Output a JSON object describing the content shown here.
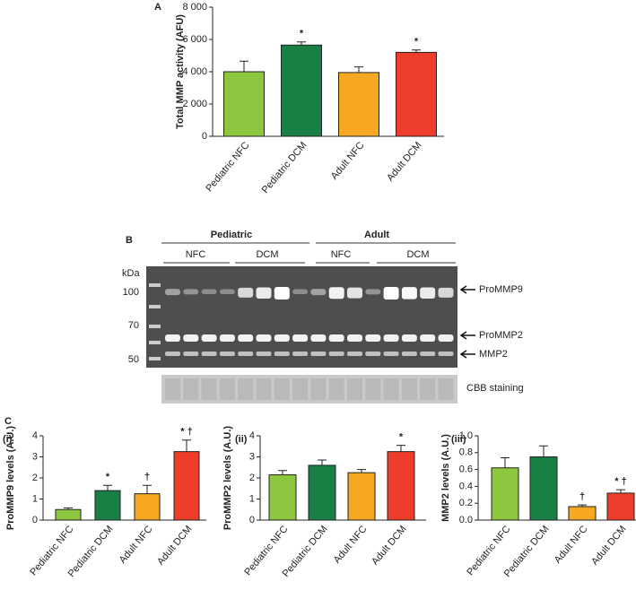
{
  "chart_data": [
    {
      "type": "bar",
      "panel": "A",
      "ylabel": "Total MMP activity (AFU)",
      "categories": [
        "Pediatric NFC",
        "Pediatric DCM",
        "Adult NFC",
        "Adult DCM"
      ],
      "values": [
        4000,
        5650,
        3950,
        5200
      ],
      "errors": [
        650,
        200,
        350,
        150
      ],
      "annotations": [
        null,
        "*",
        null,
        "*"
      ],
      "colors": [
        "#8dc63f",
        "#1a7f45",
        "#f7a823",
        "#ee3d2a"
      ],
      "ylim": [
        0,
        8000
      ],
      "yticks": [
        0,
        {
          "value": 2000,
          "label": "2 000"
        },
        {
          "value": 4000,
          "label": "4 000"
        },
        {
          "value": 6000,
          "label": "6 000"
        },
        {
          "value": 8000,
          "label": "8 000"
        }
      ]
    },
    {
      "type": "bar",
      "panel": "(i)",
      "ylabel": "ProMMP9 levels (A.U.)",
      "categories": [
        "Pediatric NFC",
        "Pediatric DCM",
        "Adult NFC",
        "Adult DCM"
      ],
      "values": [
        0.5,
        1.4,
        1.25,
        3.25
      ],
      "errors": [
        0.08,
        0.25,
        0.4,
        0.55
      ],
      "annotations": [
        null,
        "*",
        "†",
        "* †"
      ],
      "colors": [
        "#8dc63f",
        "#1a7f45",
        "#f7a823",
        "#ee3d2a"
      ],
      "ylim": [
        0,
        4
      ],
      "yticks": [
        0,
        1,
        2,
        3,
        4
      ]
    },
    {
      "type": "bar",
      "panel": "(ii)",
      "ylabel": "ProMMP2 levels (A.U.)",
      "categories": [
        "Pediatric NFC",
        "Pediatric DCM",
        "Adult NFC",
        "Adult DCM"
      ],
      "values": [
        2.15,
        2.6,
        2.25,
        3.25
      ],
      "errors": [
        0.2,
        0.25,
        0.15,
        0.3
      ],
      "annotations": [
        null,
        null,
        null,
        "*"
      ],
      "colors": [
        "#8dc63f",
        "#1a7f45",
        "#f7a823",
        "#ee3d2a"
      ],
      "ylim": [
        0,
        4
      ],
      "yticks": [
        0,
        1,
        2,
        3,
        4
      ]
    },
    {
      "type": "bar",
      "panel": "(iii)",
      "ylabel": "MMP2 levels (A.U.)",
      "categories": [
        "Pediatric NFC",
        "Pediatric DCM",
        "Adult NFC",
        "Adult DCM"
      ],
      "values": [
        0.62,
        0.75,
        0.16,
        0.32
      ],
      "errors": [
        0.12,
        0.13,
        0.02,
        0.04
      ],
      "annotations": [
        null,
        null,
        "†",
        "* †"
      ],
      "colors": [
        "#8dc63f",
        "#1a7f45",
        "#f7a823",
        "#ee3d2a"
      ],
      "ylim": [
        0,
        1
      ],
      "yticks": [
        {
          "value": 0,
          "label": "0.0"
        },
        0.2,
        0.4,
        0.6,
        0.8,
        {
          "value": 1,
          "label": "1.0"
        }
      ]
    }
  ],
  "panel_c_label": "C",
  "gel": {
    "panel": "B",
    "groups": [
      "Pediatric",
      "Adult"
    ],
    "subgroups": [
      "NFC",
      "DCM",
      "NFC",
      "DCM"
    ],
    "kda_label": "kDa",
    "markers": [
      "100",
      "70",
      "50"
    ],
    "bands": [
      "ProMMP9",
      "ProMMP2",
      "MMP2"
    ],
    "loading": "CBB staining"
  }
}
